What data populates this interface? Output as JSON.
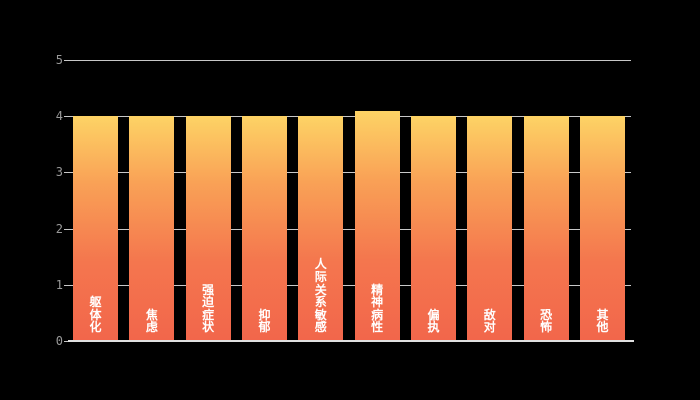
{
  "chart_data": {
    "type": "bar",
    "title": "",
    "xlabel": "",
    "ylabel": "",
    "categories": [
      "躯体化",
      "焦虑",
      "强迫症状",
      "抑郁",
      "人际关系敏感",
      "精神病性",
      "偏执",
      "敌对",
      "恐怖",
      "其他"
    ],
    "values": [
      4,
      4,
      4,
      4,
      4,
      4.1,
      4,
      4,
      4,
      4
    ],
    "ylim": [
      0,
      5
    ],
    "yticks": [
      "0",
      "1",
      "2",
      "3",
      "4",
      "5"
    ],
    "grid": true,
    "legend_position": "none",
    "colors": {
      "background": "#000000",
      "bar_gradient_top": "#FDD365",
      "bar_gradient_bottom": "#F2664B",
      "bar_label_text": "#FFFFFF",
      "gridline": "#C8C8C8",
      "axis_line": "#E0E0E0",
      "tick_label_text": "#999999"
    }
  }
}
